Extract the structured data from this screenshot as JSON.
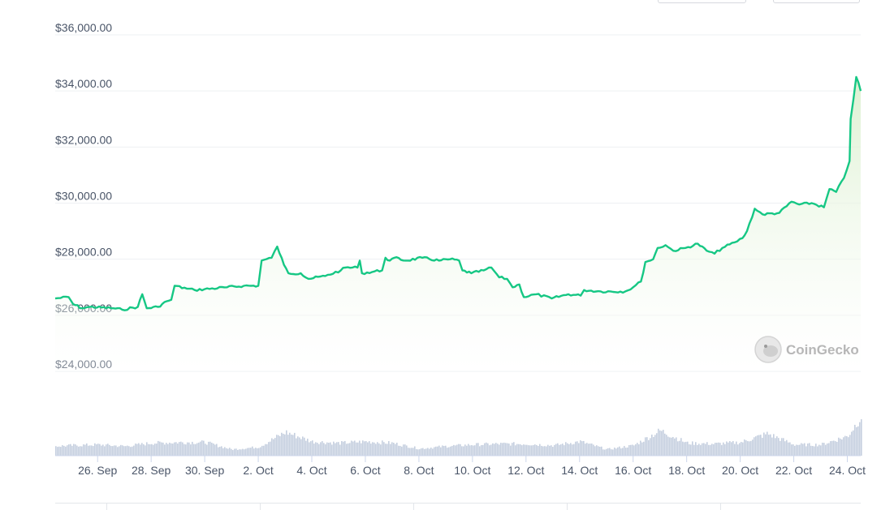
{
  "chart_data": {
    "type": "area",
    "watermark": "CoinGecko",
    "y_ticks": [
      "$24,000.00",
      "$26,000.00",
      "$28,000.00",
      "$30,000.00",
      "$32,000.00",
      "$34,000.00",
      "$36,000.00"
    ],
    "y_tick_values": [
      24000,
      26000,
      28000,
      30000,
      32000,
      34000,
      36000
    ],
    "ylim": [
      24000,
      36000
    ],
    "x_ticks": [
      "26. Sep",
      "28. Sep",
      "30. Sep",
      "2. Oct",
      "4. Oct",
      "6. Oct",
      "8. Oct",
      "10. Oct",
      "12. Oct",
      "14. Oct",
      "16. Oct",
      "18. Oct",
      "20. Oct",
      "22. Oct",
      "24. Oct"
    ],
    "xlim": [
      "24 Sep 10:00",
      "24 Oct 12:00"
    ],
    "grid": true,
    "colors": {
      "line": "#16c784",
      "fill": "#e6f4dd",
      "volume": "#c5cfdf",
      "grid": "#eef0f3"
    },
    "series": [
      {
        "x": [
          "24 Sep 10:00",
          "24 Sep 22:00",
          "25 Sep 02:00",
          "25 Sep 10:00",
          "25 Sep 17:00",
          "26 Sep 14:00",
          "26 Sep 22:00",
          "27 Sep 12:00",
          "27 Sep 16:00",
          "27 Sep 20:00",
          "28 Sep 06:00",
          "28 Sep 14:00",
          "28 Sep 18:00",
          "28 Sep 21:00",
          "29 Sep 08:00",
          "29 Sep 15:00",
          "30 Sep 20:00",
          "1 Oct 11:00",
          "2 Oct 00:00",
          "2 Oct 03:00",
          "2 Oct 12:00",
          "2 Oct 17:00",
          "2 Oct 23:00",
          "3 Oct 03:00",
          "3 Oct 14:00",
          "3 Oct 21:00",
          "4 Oct 12:00",
          "5 Oct 02:00",
          "5 Oct 06:00",
          "5 Oct 17:00",
          "5 Oct 19:00",
          "5 Oct 21:00",
          "6 Oct 15:00",
          "6 Oct 18:00",
          "6 Oct 22:00",
          "7 Oct 02:00",
          "7 Oct 12:00",
          "8 Oct 03:00",
          "8 Oct 18:00",
          "9 Oct 04:00",
          "9 Oct 12:00",
          "9 Oct 15:00",
          "9 Oct 23:00",
          "10 Oct 10:00",
          "10 Oct 17:00",
          "11 Oct 00:00",
          "11 Oct 07:00",
          "11 Oct 12:00",
          "11 Oct 18:00",
          "11 Oct 22:00",
          "12 Oct 09:00",
          "12 Oct 23:00",
          "13 Oct 14:00",
          "14 Oct 01:00",
          "14 Oct 04:00",
          "14 Oct 19:00",
          "15 Oct 17:00",
          "16 Oct 00:00",
          "16 Oct 07:00",
          "16 Oct 11:00",
          "16 Oct 18:00",
          "16 Oct 22:00",
          "17 Oct 05:00",
          "17 Oct 12:00",
          "17 Oct 23:00",
          "18 Oct 10:00",
          "18 Oct 18:00",
          "19 Oct 01:00",
          "19 Oct 08:00",
          "19 Oct 19:00",
          "20 Oct 02:00",
          "20 Oct 06:00",
          "20 Oct 13:00",
          "20 Oct 20:00",
          "21 Oct 11:00",
          "21 Oct 22:00",
          "22 Oct 05:00",
          "22 Oct 16:00",
          "23 Oct 03:00",
          "23 Oct 08:00",
          "23 Oct 14:00",
          "23 Oct 21:00",
          "24 Oct 02:00",
          "24 Oct 03:00",
          "24 Oct 08:00",
          "24 Oct 12:00"
        ],
        "y": [
          26600,
          26650,
          26400,
          26250,
          26300,
          26250,
          26200,
          26300,
          26750,
          26250,
          26300,
          26500,
          26550,
          27050,
          26950,
          26900,
          27000,
          27050,
          27050,
          27950,
          28050,
          28450,
          27800,
          27500,
          27500,
          27300,
          27400,
          27600,
          27700,
          27700,
          27950,
          27500,
          27600,
          28050,
          27950,
          28050,
          27950,
          28050,
          27950,
          28000,
          27950,
          27600,
          27500,
          27600,
          27700,
          27350,
          27300,
          27000,
          27100,
          26650,
          26750,
          26600,
          26750,
          26700,
          26900,
          26850,
          26850,
          27000,
          27200,
          27900,
          28000,
          28400,
          28500,
          28300,
          28400,
          28550,
          28300,
          28200,
          28400,
          28600,
          28750,
          29000,
          29800,
          29600,
          29650,
          30050,
          29950,
          30000,
          29850,
          30500,
          30400,
          30900,
          31500,
          33000,
          34500,
          34000
        ]
      }
    ],
    "volume_relative": {
      "x": [
        "24 Sep 10:00",
        "25 Sep 00:00",
        "26 Sep 00:00",
        "27 Sep 00:00",
        "28 Sep 00:00",
        "29 Sep 00:00",
        "30 Sep 00:00",
        "1 Oct 00:00",
        "2 Oct 00:00",
        "3 Oct 00:00",
        "4 Oct 00:00",
        "5 Oct 00:00",
        "6 Oct 00:00",
        "7 Oct 00:00",
        "8 Oct 00:00",
        "9 Oct 00:00",
        "10 Oct 00:00",
        "11 Oct 00:00",
        "12 Oct 00:00",
        "13 Oct 00:00",
        "14 Oct 00:00",
        "15 Oct 00:00",
        "16 Oct 00:00",
        "17 Oct 00:00",
        "18 Oct 00:00",
        "19 Oct 00:00",
        "20 Oct 00:00",
        "21 Oct 00:00",
        "22 Oct 00:00",
        "23 Oct 00:00",
        "24 Oct 00:00",
        "24 Oct 12:00"
      ],
      "y": [
        0.24,
        0.26,
        0.28,
        0.24,
        0.32,
        0.34,
        0.34,
        0.16,
        0.22,
        0.6,
        0.36,
        0.32,
        0.36,
        0.32,
        0.18,
        0.24,
        0.28,
        0.3,
        0.3,
        0.26,
        0.36,
        0.16,
        0.26,
        0.64,
        0.32,
        0.3,
        0.34,
        0.56,
        0.28,
        0.28,
        0.5,
        1.0
      ]
    }
  }
}
